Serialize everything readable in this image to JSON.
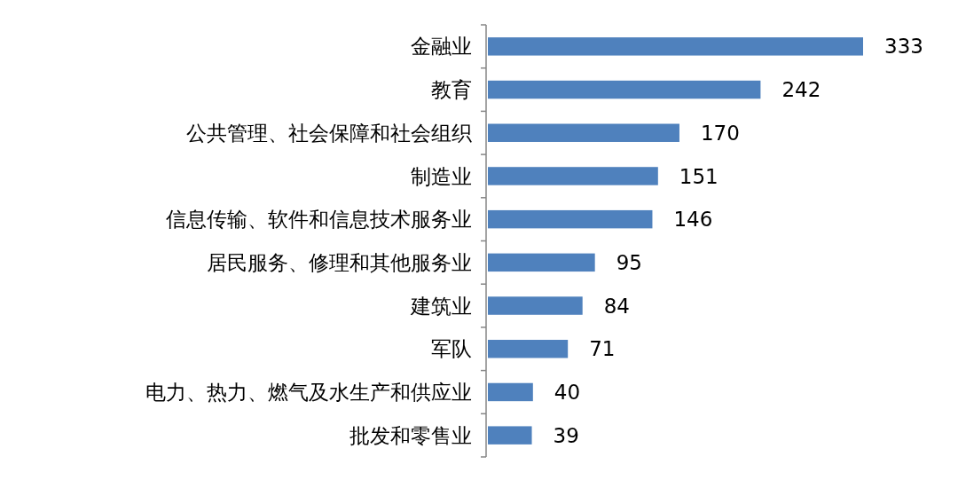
{
  "chart_data": {
    "type": "bar",
    "orientation": "horizontal",
    "categories": [
      "金融业",
      "教育",
      "公共管理、社会保障和社会组织",
      "制造业",
      "信息传输、软件和信息技术服务业",
      "居民服务、修理和其他服务业",
      "建筑业",
      "军队",
      "电力、热力、燃气及水生产和供应业",
      "批发和零售业"
    ],
    "values": [
      333,
      242,
      170,
      151,
      146,
      95,
      84,
      71,
      40,
      39
    ],
    "color": "#4f81bd",
    "data_labels": true
  }
}
